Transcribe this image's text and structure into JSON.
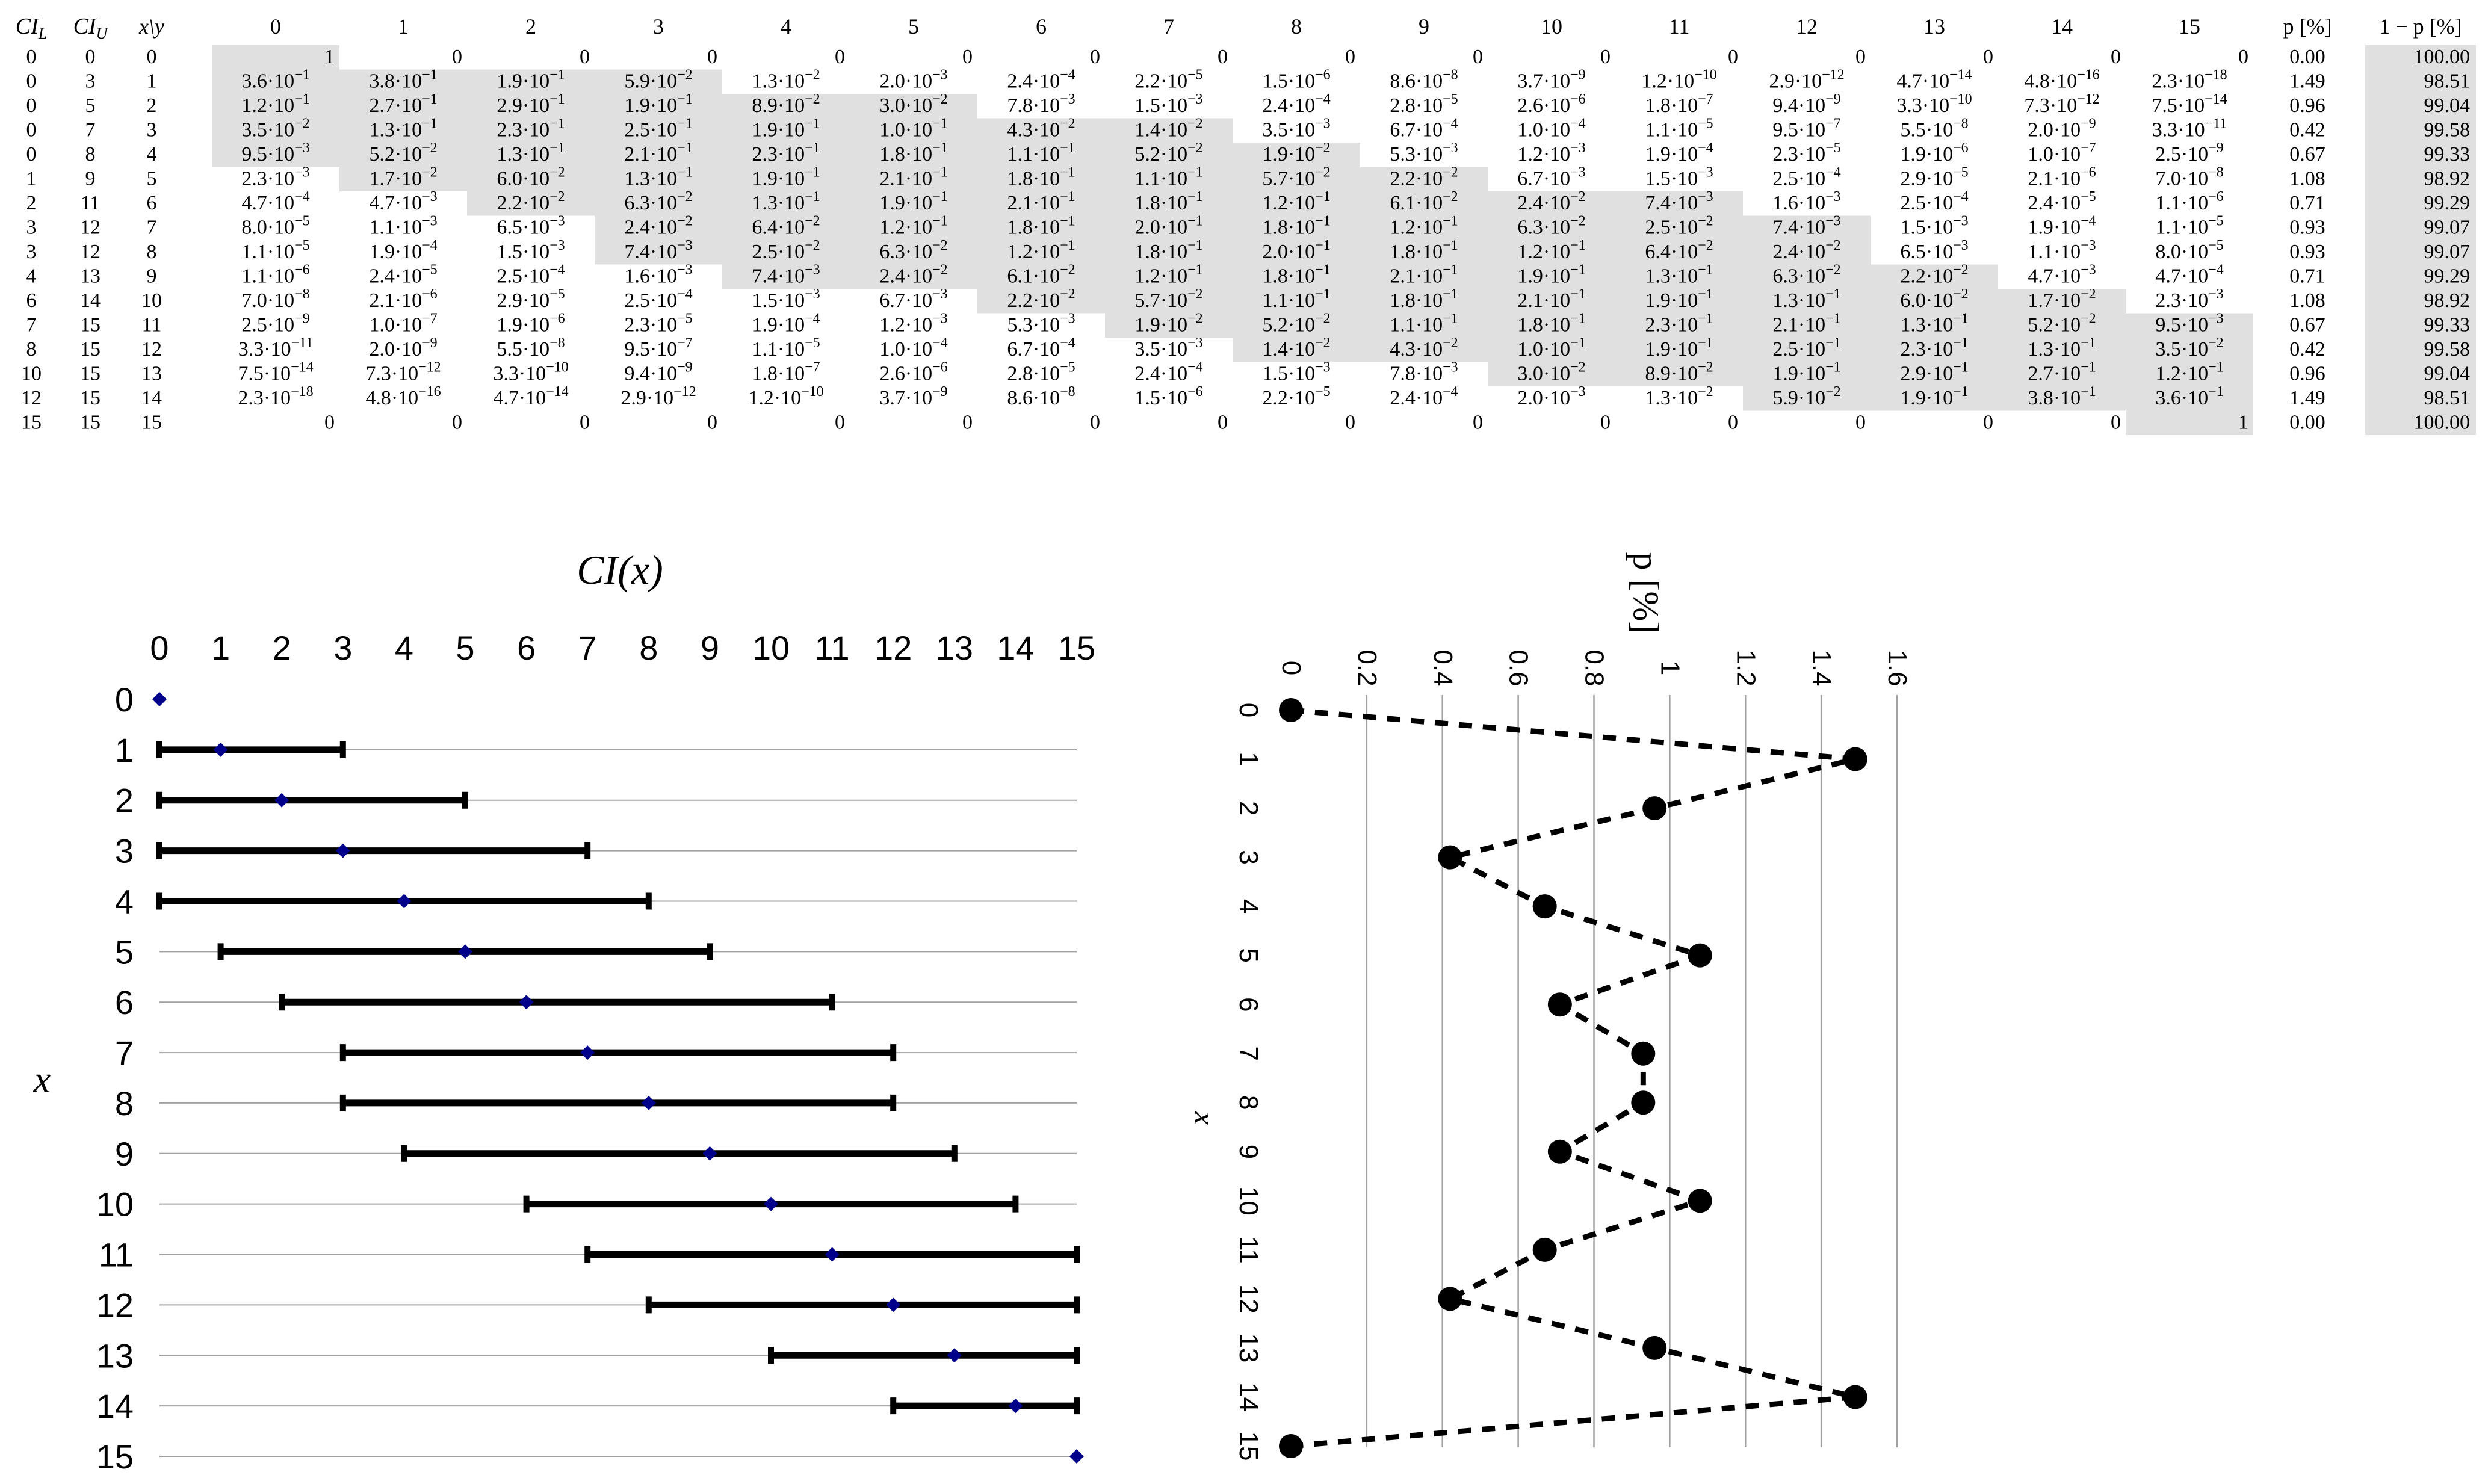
{
  "table": {
    "headers": {
      "ci_l": "CI_L",
      "ci_u": "CI_U",
      "x_y": "x\\y",
      "p": "p [%]",
      "one_minus_p": "1 − p [%]",
      "y_values": [
        "0",
        "1",
        "2",
        "3",
        "4",
        "5",
        "6",
        "7",
        "8",
        "9",
        "10",
        "11",
        "12",
        "13",
        "14",
        "15"
      ]
    },
    "rows": [
      {
        "ci_l": "0",
        "ci_u": "0",
        "x": "0",
        "cells": [
          "1",
          "0",
          "0",
          "0",
          "0",
          "0",
          "0",
          "0",
          "0",
          "0",
          "0",
          "0",
          "0",
          "0",
          "0",
          "0"
        ],
        "p": "0.00",
        "q": "100.00"
      },
      {
        "ci_l": "0",
        "ci_u": "3",
        "x": "1",
        "cells": [
          "3.6·10^-1",
          "3.8·10^-1",
          "1.9·10^-1",
          "5.9·10^-2",
          "1.3·10^-2",
          "2.0·10^-3",
          "2.4·10^-4",
          "2.2·10^-5",
          "1.5·10^-6",
          "8.6·10^-8",
          "3.7·10^-9",
          "1.2·10^-10",
          "2.9·10^-12",
          "4.7·10^-14",
          "4.8·10^-16",
          "2.3·10^-18"
        ],
        "p": "1.49",
        "q": "98.51"
      },
      {
        "ci_l": "0",
        "ci_u": "5",
        "x": "2",
        "cells": [
          "1.2·10^-1",
          "2.7·10^-1",
          "2.9·10^-1",
          "1.9·10^-1",
          "8.9·10^-2",
          "3.0·10^-2",
          "7.8·10^-3",
          "1.5·10^-3",
          "2.4·10^-4",
          "2.8·10^-5",
          "2.6·10^-6",
          "1.8·10^-7",
          "9.4·10^-9",
          "3.3·10^-10",
          "7.3·10^-12",
          "7.5·10^-14"
        ],
        "p": "0.96",
        "q": "99.04"
      },
      {
        "ci_l": "0",
        "ci_u": "7",
        "x": "3",
        "cells": [
          "3.5·10^-2",
          "1.3·10^-1",
          "2.3·10^-1",
          "2.5·10^-1",
          "1.9·10^-1",
          "1.0·10^-1",
          "4.3·10^-2",
          "1.4·10^-2",
          "3.5·10^-3",
          "6.7·10^-4",
          "1.0·10^-4",
          "1.1·10^-5",
          "9.5·10^-7",
          "5.5·10^-8",
          "2.0·10^-9",
          "3.3·10^-11"
        ],
        "p": "0.42",
        "q": "99.58"
      },
      {
        "ci_l": "0",
        "ci_u": "8",
        "x": "4",
        "cells": [
          "9.5·10^-3",
          "5.2·10^-2",
          "1.3·10^-1",
          "2.1·10^-1",
          "2.3·10^-1",
          "1.8·10^-1",
          "1.1·10^-1",
          "5.2·10^-2",
          "1.9·10^-2",
          "5.3·10^-3",
          "1.2·10^-3",
          "1.9·10^-4",
          "2.3·10^-5",
          "1.9·10^-6",
          "1.0·10^-7",
          "2.5·10^-9"
        ],
        "p": "0.67",
        "q": "99.33"
      },
      {
        "ci_l": "1",
        "ci_u": "9",
        "x": "5",
        "cells": [
          "2.3·10^-3",
          "1.7·10^-2",
          "6.0·10^-2",
          "1.3·10^-1",
          "1.9·10^-1",
          "2.1·10^-1",
          "1.8·10^-1",
          "1.1·10^-1",
          "5.7·10^-2",
          "2.2·10^-2",
          "6.7·10^-3",
          "1.5·10^-3",
          "2.5·10^-4",
          "2.9·10^-5",
          "2.1·10^-6",
          "7.0·10^-8"
        ],
        "p": "1.08",
        "q": "98.92"
      },
      {
        "ci_l": "2",
        "ci_u": "11",
        "x": "6",
        "cells": [
          "4.7·10^-4",
          "4.7·10^-3",
          "2.2·10^-2",
          "6.3·10^-2",
          "1.3·10^-1",
          "1.9·10^-1",
          "2.1·10^-1",
          "1.8·10^-1",
          "1.2·10^-1",
          "6.1·10^-2",
          "2.4·10^-2",
          "7.4·10^-3",
          "1.6·10^-3",
          "2.5·10^-4",
          "2.4·10^-5",
          "1.1·10^-6"
        ],
        "p": "0.71",
        "q": "99.29"
      },
      {
        "ci_l": "3",
        "ci_u": "12",
        "x": "7",
        "cells": [
          "8.0·10^-5",
          "1.1·10^-3",
          "6.5·10^-3",
          "2.4·10^-2",
          "6.4·10^-2",
          "1.2·10^-1",
          "1.8·10^-1",
          "2.0·10^-1",
          "1.8·10^-1",
          "1.2·10^-1",
          "6.3·10^-2",
          "2.5·10^-2",
          "7.4·10^-3",
          "1.5·10^-3",
          "1.9·10^-4",
          "1.1·10^-5"
        ],
        "p": "0.93",
        "q": "99.07"
      },
      {
        "ci_l": "3",
        "ci_u": "12",
        "x": "8",
        "cells": [
          "1.1·10^-5",
          "1.9·10^-4",
          "1.5·10^-3",
          "7.4·10^-3",
          "2.5·10^-2",
          "6.3·10^-2",
          "1.2·10^-1",
          "1.8·10^-1",
          "2.0·10^-1",
          "1.8·10^-1",
          "1.2·10^-1",
          "6.4·10^-2",
          "2.4·10^-2",
          "6.5·10^-3",
          "1.1·10^-3",
          "8.0·10^-5"
        ],
        "p": "0.93",
        "q": "99.07"
      },
      {
        "ci_l": "4",
        "ci_u": "13",
        "x": "9",
        "cells": [
          "1.1·10^-6",
          "2.4·10^-5",
          "2.5·10^-4",
          "1.6·10^-3",
          "7.4·10^-3",
          "2.4·10^-2",
          "6.1·10^-2",
          "1.2·10^-1",
          "1.8·10^-1",
          "2.1·10^-1",
          "1.9·10^-1",
          "1.3·10^-1",
          "6.3·10^-2",
          "2.2·10^-2",
          "4.7·10^-3",
          "4.7·10^-4"
        ],
        "p": "0.71",
        "q": "99.29"
      },
      {
        "ci_l": "6",
        "ci_u": "14",
        "x": "10",
        "cells": [
          "7.0·10^-8",
          "2.1·10^-6",
          "2.9·10^-5",
          "2.5·10^-4",
          "1.5·10^-3",
          "6.7·10^-3",
          "2.2·10^-2",
          "5.7·10^-2",
          "1.1·10^-1",
          "1.8·10^-1",
          "2.1·10^-1",
          "1.9·10^-1",
          "1.3·10^-1",
          "6.0·10^-2",
          "1.7·10^-2",
          "2.3·10^-3"
        ],
        "p": "1.08",
        "q": "98.92"
      },
      {
        "ci_l": "7",
        "ci_u": "15",
        "x": "11",
        "cells": [
          "2.5·10^-9",
          "1.0·10^-7",
          "1.9·10^-6",
          "2.3·10^-5",
          "1.9·10^-4",
          "1.2·10^-3",
          "5.3·10^-3",
          "1.9·10^-2",
          "5.2·10^-2",
          "1.1·10^-1",
          "1.8·10^-1",
          "2.3·10^-1",
          "2.1·10^-1",
          "1.3·10^-1",
          "5.2·10^-2",
          "9.5·10^-3"
        ],
        "p": "0.67",
        "q": "99.33"
      },
      {
        "ci_l": "8",
        "ci_u": "15",
        "x": "12",
        "cells": [
          "3.3·10^-11",
          "2.0·10^-9",
          "5.5·10^-8",
          "9.5·10^-7",
          "1.1·10^-5",
          "1.0·10^-4",
          "6.7·10^-4",
          "3.5·10^-3",
          "1.4·10^-2",
          "4.3·10^-2",
          "1.0·10^-1",
          "1.9·10^-1",
          "2.5·10^-1",
          "2.3·10^-1",
          "1.3·10^-1",
          "3.5·10^-2"
        ],
        "p": "0.42",
        "q": "99.58"
      },
      {
        "ci_l": "10",
        "ci_u": "15",
        "x": "13",
        "cells": [
          "7.5·10^-14",
          "7.3·10^-12",
          "3.3·10^-10",
          "9.4·10^-9",
          "1.8·10^-7",
          "2.6·10^-6",
          "2.8·10^-5",
          "2.4·10^-4",
          "1.5·10^-3",
          "7.8·10^-3",
          "3.0·10^-2",
          "8.9·10^-2",
          "1.9·10^-1",
          "2.9·10^-1",
          "2.7·10^-1",
          "1.2·10^-1"
        ],
        "p": "0.96",
        "q": "99.04"
      },
      {
        "ci_l": "12",
        "ci_u": "15",
        "x": "14",
        "cells": [
          "2.3·10^-18",
          "4.8·10^-16",
          "4.7·10^-14",
          "2.9·10^-12",
          "1.2·10^-10",
          "3.7·10^-9",
          "8.6·10^-8",
          "1.5·10^-6",
          "2.2·10^-5",
          "2.4·10^-4",
          "2.0·10^-3",
          "1.3·10^-2",
          "5.9·10^-2",
          "1.9·10^-1",
          "3.8·10^-1",
          "3.6·10^-1"
        ],
        "p": "1.49",
        "q": "98.51"
      },
      {
        "ci_l": "15",
        "ci_u": "15",
        "x": "15",
        "cells": [
          "0",
          "0",
          "0",
          "0",
          "0",
          "0",
          "0",
          "0",
          "0",
          "0",
          "0",
          "0",
          "0",
          "0",
          "0",
          "1"
        ],
        "p": "0.00",
        "q": "100.00"
      }
    ],
    "colors": {
      "highlight": "#e0e0e0"
    }
  },
  "chart_data": [
    {
      "type": "interval",
      "title": "CI(x)",
      "ylabel": "x",
      "xticks": [
        "0",
        "1",
        "2",
        "3",
        "4",
        "5",
        "6",
        "7",
        "8",
        "9",
        "10",
        "11",
        "12",
        "13",
        "14",
        "15"
      ],
      "yticks": [
        "0",
        "1",
        "2",
        "3",
        "4",
        "5",
        "6",
        "7",
        "8",
        "9",
        "10",
        "11",
        "12",
        "13",
        "14",
        "15"
      ],
      "xlim": [
        0,
        15
      ],
      "x": [
        0,
        1,
        2,
        3,
        4,
        5,
        6,
        7,
        8,
        9,
        10,
        11,
        12,
        13,
        14,
        15
      ],
      "lower": [
        0,
        0,
        0,
        0,
        0,
        1,
        2,
        3,
        3,
        4,
        6,
        7,
        8,
        10,
        12,
        15
      ],
      "upper": [
        0,
        3,
        5,
        7,
        8,
        9,
        11,
        12,
        12,
        13,
        14,
        15,
        15,
        15,
        15,
        15
      ],
      "grid": true,
      "colors": {
        "interval": "#000000",
        "point": "#00008b",
        "grid": "#a0a0a0"
      }
    },
    {
      "type": "line",
      "title": "p [%]",
      "xlabel": "x",
      "xticks": [
        "0",
        "1",
        "2",
        "3",
        "4",
        "5",
        "6",
        "7",
        "8",
        "9",
        "10",
        "11",
        "12",
        "13",
        "14",
        "15"
      ],
      "yticks": [
        "0",
        "0.2",
        "0.4",
        "0.6",
        "0.8",
        "1",
        "1.2",
        "1.4",
        "1.6"
      ],
      "ylim": [
        0,
        1.6
      ],
      "x": [
        0,
        1,
        2,
        3,
        4,
        5,
        6,
        7,
        8,
        9,
        10,
        11,
        12,
        13,
        14,
        15
      ],
      "values": [
        0.0,
        1.49,
        0.96,
        0.42,
        0.67,
        1.08,
        0.71,
        0.93,
        0.93,
        0.71,
        1.08,
        0.67,
        0.42,
        0.96,
        1.49,
        0.0
      ],
      "orientation": "rotated",
      "line_style": "dashed",
      "grid": true,
      "colors": {
        "line": "#000000",
        "marker": "#000000",
        "grid": "#a0a0a0"
      }
    }
  ]
}
